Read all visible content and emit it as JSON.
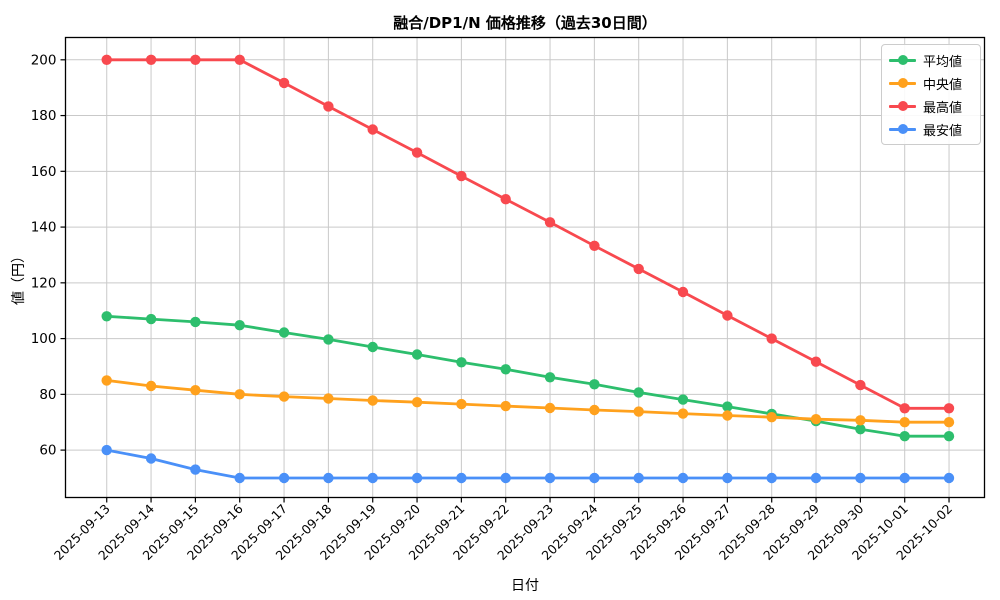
{
  "chart_data": {
    "type": "line",
    "title": "融合/DP1/N 価格推移（過去30日間）",
    "xlabel": "日付",
    "ylabel": "値（円）",
    "x": [
      "2025-09-13",
      "2025-09-14",
      "2025-09-15",
      "2025-09-16",
      "2025-09-17",
      "2025-09-18",
      "2025-09-19",
      "2025-09-20",
      "2025-09-21",
      "2025-09-22",
      "2025-09-23",
      "2025-09-24",
      "2025-09-25",
      "2025-09-26",
      "2025-09-27",
      "2025-09-28",
      "2025-09-29",
      "2025-09-30",
      "2025-10-01",
      "2025-10-02"
    ],
    "series": [
      {
        "name": "平均値",
        "color": "#2dbe6d",
        "values": [
          108,
          107,
          106,
          104.8,
          102.2,
          99.7,
          97.0,
          94.3,
          91.5,
          89.0,
          86.1,
          83.6,
          80.7,
          78.1,
          75.6,
          73.0,
          70.4,
          67.5,
          65.0,
          65.0
        ]
      },
      {
        "name": "中央値",
        "color": "#ffa11d",
        "values": [
          85,
          83,
          81.5,
          80,
          79.2,
          78.5,
          77.8,
          77.2,
          76.5,
          75.8,
          75.1,
          74.4,
          73.8,
          73.1,
          72.4,
          71.8,
          71.1,
          70.7,
          70.0,
          70.0
        ]
      },
      {
        "name": "最高値",
        "color": "#f8494f",
        "values": [
          200,
          200,
          200,
          200,
          191.7,
          183.3,
          175.0,
          166.7,
          158.3,
          150.0,
          141.7,
          133.3,
          125.0,
          116.7,
          108.3,
          100.0,
          91.7,
          83.3,
          75.0,
          75.0
        ]
      },
      {
        "name": "最安値",
        "color": "#4a90f8",
        "values": [
          60,
          57,
          53,
          50,
          50,
          50,
          50,
          50,
          50,
          50,
          50,
          50,
          50,
          50,
          50,
          50,
          50,
          50,
          50,
          50
        ]
      }
    ],
    "y_ticks": [
      60,
      80,
      100,
      120,
      140,
      160,
      180,
      200
    ],
    "ylim": [
      43,
      208
    ],
    "grid": true,
    "legend_position": "upper right",
    "grid_color": "#c9c9c9",
    "axis_color": "#000000"
  }
}
